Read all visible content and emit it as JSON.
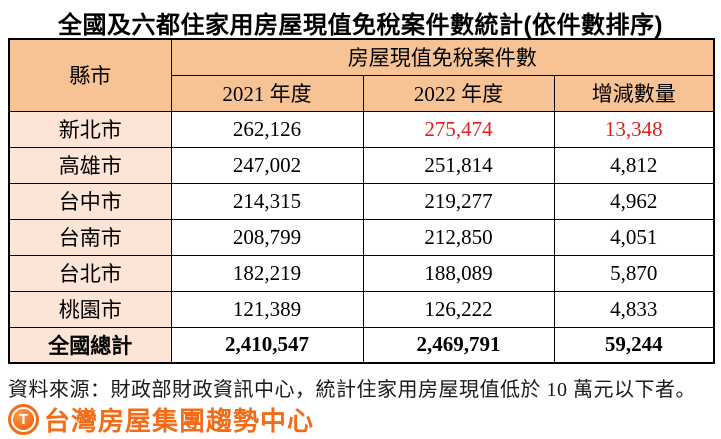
{
  "title": "全國及六都住家用房屋現值免稅案件數統計(依件數排序)",
  "table": {
    "corner_header": "縣市",
    "group_header": "房屋現值免稅案件數",
    "col_headers": [
      "2021 年度",
      "2022 年度",
      "增減數量"
    ],
    "rows": [
      {
        "city": "新北市",
        "y2021": "262,126",
        "y2022": "275,474",
        "diff": "13,348"
      },
      {
        "city": "高雄市",
        "y2021": "247,002",
        "y2022": "251,814",
        "diff": "4,812"
      },
      {
        "city": "台中市",
        "y2021": "214,315",
        "y2022": "219,277",
        "diff": "4,962"
      },
      {
        "city": "台南市",
        "y2021": "208,799",
        "y2022": "212,850",
        "diff": "4,051"
      },
      {
        "city": "台北市",
        "y2021": "182,219",
        "y2022": "188,089",
        "diff": "5,870"
      },
      {
        "city": "桃園市",
        "y2021": "121,389",
        "y2022": "126,222",
        "diff": "4,833"
      }
    ],
    "total": {
      "city": "全國總計",
      "y2021": "2,410,547",
      "y2022": "2,469,791",
      "diff": "59,244"
    }
  },
  "source_note": "資料來源：財政部財政資訊中心，統計住家用房屋現值低於 10 萬元以下者。",
  "brand": {
    "logo_letter": "T",
    "logo_text": "台灣房屋集團趨勢中心"
  },
  "colors": {
    "header_bg": "#F8C394",
    "label_bg": "#FCE4D6",
    "highlight_red": "#E01E1E",
    "brand_orange": "#F26C1A"
  }
}
